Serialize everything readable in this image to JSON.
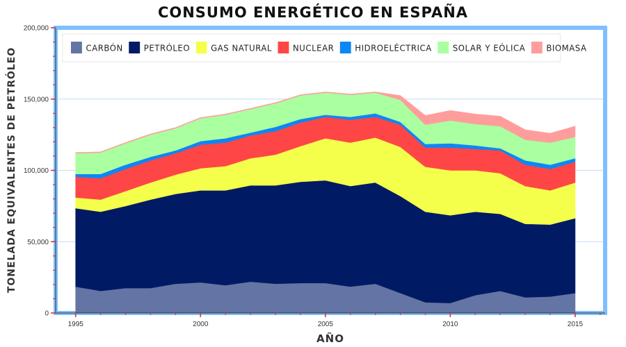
{
  "chart_data": {
    "type": "area",
    "stacked": true,
    "title": "CONSUMO ENERGÉTICO EN ESPAÑA",
    "xlabel": "AÑO",
    "ylabel": "TONELADA EQUIVALENTES DE PETRÓLEO",
    "x": [
      1995,
      1996,
      1997,
      1998,
      1999,
      2000,
      2001,
      2002,
      2003,
      2004,
      2005,
      2006,
      2007,
      2008,
      2009,
      2010,
      2011,
      2012,
      2013,
      2014,
      2015
    ],
    "xlim": [
      1994.2,
      2016.2
    ],
    "ylim": [
      0,
      200000
    ],
    "x_ticks": [
      1995,
      2000,
      2005,
      2010,
      2015
    ],
    "x_tick_labels": [
      "1995",
      "2000",
      "2005",
      "2010",
      "2015"
    ],
    "y_ticks": [
      0,
      50000,
      100000,
      150000,
      200000
    ],
    "y_tick_labels": [
      "0",
      "50,000",
      "100,000",
      "150,000",
      "200,000"
    ],
    "grid": true,
    "legend_position": "top",
    "frame_color": "#7fbfff",
    "series": [
      {
        "name": "CARBÓN",
        "color": "#6474a4",
        "values": [
          18500,
          15500,
          17500,
          17500,
          20500,
          21500,
          19500,
          22000,
          20500,
          21000,
          21000,
          18500,
          20500,
          14000,
          7500,
          7000,
          12500,
          15500,
          11000,
          11500,
          14000
        ]
      },
      {
        "name": "PETRÓLEO",
        "color": "#001b63",
        "values": [
          55000,
          55500,
          57500,
          62000,
          63000,
          64500,
          66500,
          67500,
          69000,
          71000,
          72000,
          70500,
          71000,
          68000,
          63500,
          61500,
          58500,
          54000,
          51500,
          50500,
          52500
        ]
      },
      {
        "name": "GAS NATURAL",
        "color": "#f4ff4b",
        "values": [
          7500,
          8500,
          10500,
          12000,
          13500,
          15500,
          17000,
          19000,
          21500,
          25000,
          29500,
          30500,
          31500,
          34500,
          31500,
          31500,
          29000,
          28500,
          26500,
          24000,
          25000
        ]
      },
      {
        "name": "NUCLEAR",
        "color": "#ff4646",
        "values": [
          14500,
          15000,
          15500,
          15500,
          15000,
          16500,
          16500,
          16000,
          16500,
          16500,
          15000,
          16000,
          14500,
          15500,
          13500,
          16000,
          15000,
          16000,
          15000,
          15000,
          14500
        ]
      },
      {
        "name": "HIDROELÉCTRICA",
        "color": "#0e86f5",
        "values": [
          2000,
          3000,
          3000,
          2500,
          2000,
          2500,
          3000,
          2000,
          3000,
          2500,
          1500,
          2000,
          2500,
          2000,
          2500,
          3000,
          2500,
          1500,
          3000,
          3000,
          2500
        ]
      },
      {
        "name": "SOLAR Y EÓLICA",
        "color": "#aaffa0",
        "values": [
          14500,
          15000,
          15000,
          15500,
          15500,
          16000,
          16500,
          16500,
          16500,
          16500,
          15500,
          15500,
          14500,
          15500,
          13500,
          16000,
          15000,
          15500,
          14500,
          15500,
          15000
        ]
      },
      {
        "name": "BIOMASA",
        "color": "#ff9d9d",
        "values": [
          500,
          500,
          500,
          500,
          500,
          500,
          500,
          500,
          500,
          500,
          500,
          500,
          500,
          3000,
          6500,
          7000,
          7000,
          7000,
          7000,
          6500,
          7500
        ]
      }
    ]
  }
}
